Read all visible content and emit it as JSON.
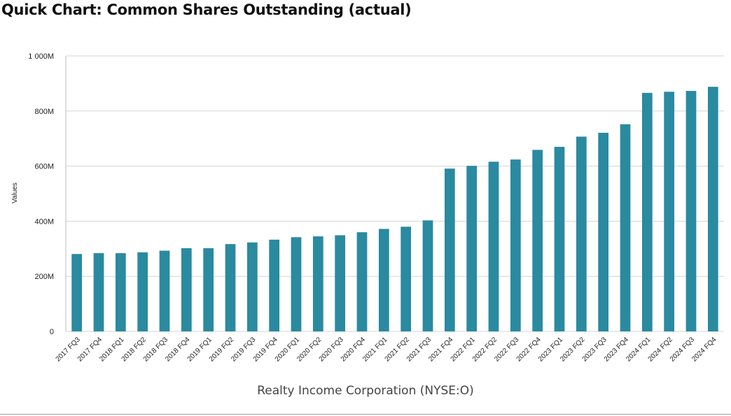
{
  "chart_data": {
    "type": "bar",
    "title": "Quick Chart: Common Shares Outstanding (actual)",
    "xlabel": "Realty Income Corporation (NYSE:O)",
    "ylabel": "Values",
    "ylim": [
      0,
      1000000000
    ],
    "y_ticks": [
      {
        "value": 0,
        "label": "0"
      },
      {
        "value": 200000000,
        "label": "200M"
      },
      {
        "value": 400000000,
        "label": "400M"
      },
      {
        "value": 600000000,
        "label": "600M"
      },
      {
        "value": 800000000,
        "label": "800M"
      },
      {
        "value": 1000000000,
        "label": "1 000M"
      }
    ],
    "grid": true,
    "bar_color": "#2a8aa0",
    "categories": [
      "2017 FQ3",
      "2017 FQ4",
      "2018 FQ1",
      "2018 FQ2",
      "2018 FQ3",
      "2018 FQ4",
      "2019 FQ1",
      "2019 FQ2",
      "2019 FQ3",
      "2019 FQ4",
      "2020 FQ1",
      "2020 FQ2",
      "2020 FQ3",
      "2020 FQ4",
      "2021 FQ1",
      "2021 FQ2",
      "2021 FQ3",
      "2021 FQ4",
      "2022 FQ1",
      "2022 FQ2",
      "2022 FQ3",
      "2022 FQ4",
      "2023 FQ1",
      "2023 FQ2",
      "2023 FQ3",
      "2023 FQ4",
      "2024 FQ1",
      "2024 FQ2",
      "2024 FQ3",
      "2024 FQ4"
    ],
    "values": [
      281000000,
      284000000,
      284000000,
      287000000,
      293000000,
      302000000,
      302000000,
      317000000,
      323000000,
      333000000,
      342000000,
      345000000,
      349000000,
      360000000,
      372000000,
      380000000,
      403000000,
      591000000,
      601000000,
      616000000,
      624000000,
      659000000,
      670000000,
      707000000,
      721000000,
      752000000,
      866000000,
      870000000,
      873000000,
      888000000
    ]
  }
}
